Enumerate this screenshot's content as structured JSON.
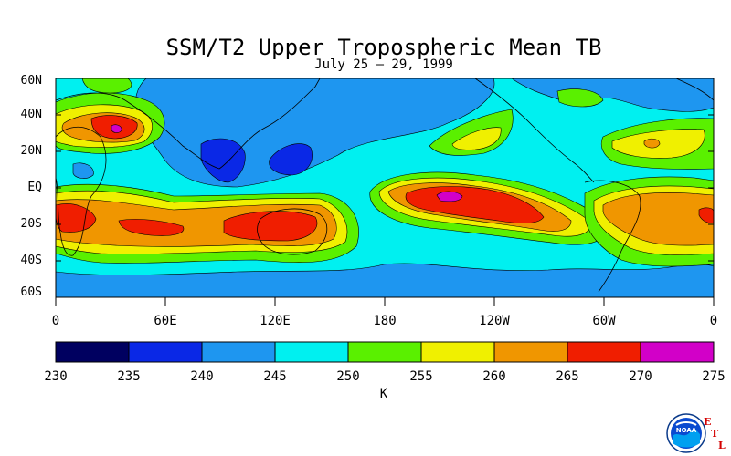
{
  "title": "SSM/T2 Upper Tropospheric Mean TB",
  "subtitle": "July 25 – 29, 1999",
  "lat_labels": [
    "60N",
    "40N",
    "20N",
    "EQ",
    "20S",
    "40S",
    "60S"
  ],
  "lon_labels": [
    "0",
    "60E",
    "120E",
    "180",
    "120W",
    "60W",
    "0"
  ],
  "colorbar": {
    "labels": [
      "230",
      "235",
      "240",
      "245",
      "250",
      "255",
      "260",
      "265",
      "270",
      "275"
    ],
    "colors": [
      "#000060",
      "#0a28e6",
      "#1e96f0",
      "#00f0f0",
      "#5af000",
      "#f0f000",
      "#f09600",
      "#f01e00",
      "#d200c8"
    ],
    "units": "K"
  },
  "logo": {
    "text": "NOAA",
    "letters": [
      "E",
      "T",
      "L"
    ]
  }
}
